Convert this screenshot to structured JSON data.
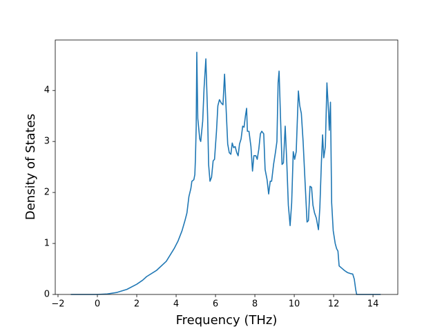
{
  "chart_data": {
    "type": "line",
    "xlabel": "Frequency (THz)",
    "ylabel": "Density of States",
    "x": [
      -1.35,
      -0.5,
      0,
      0.5,
      1,
      1.5,
      2,
      2.3,
      2.5,
      3,
      3.5,
      3.9,
      4.1,
      4.3,
      4.45,
      4.55,
      4.65,
      4.75,
      4.8,
      4.9,
      4.95,
      4.98,
      5.02,
      5.05,
      5.1,
      5.2,
      5.25,
      5.35,
      5.42,
      5.51,
      5.6,
      5.65,
      5.72,
      5.8,
      5.88,
      5.95,
      6.05,
      6.12,
      6.2,
      6.3,
      6.38,
      6.46,
      6.55,
      6.62,
      6.7,
      6.78,
      6.85,
      6.92,
      7.0,
      7.08,
      7.15,
      7.22,
      7.3,
      7.38,
      7.45,
      7.52,
      7.58,
      7.62,
      7.7,
      7.8,
      7.88,
      7.95,
      8.05,
      8.12,
      8.2,
      8.28,
      8.35,
      8.45,
      8.52,
      8.62,
      8.7,
      8.78,
      8.85,
      8.95,
      9.05,
      9.12,
      9.18,
      9.23,
      9.3,
      9.38,
      9.45,
      9.54,
      9.62,
      9.7,
      9.79,
      9.87,
      9.95,
      10.02,
      10.1,
      10.21,
      10.28,
      10.36,
      10.45,
      10.55,
      10.65,
      10.72,
      10.8,
      10.88,
      10.95,
      11.03,
      11.12,
      11.23,
      11.3,
      11.38,
      11.44,
      11.5,
      11.58,
      11.66,
      11.74,
      11.78,
      11.84,
      11.9,
      11.98,
      12.08,
      12.15,
      12.22,
      12.28,
      12.4,
      12.55,
      12.7,
      12.85,
      12.97,
      13.05,
      13.12,
      13.17,
      13.5,
      14.0,
      14.39
    ],
    "values": [
      0,
      0,
      0,
      0.01,
      0.04,
      0.1,
      0.2,
      0.28,
      0.35,
      0.47,
      0.65,
      0.9,
      1.05,
      1.25,
      1.45,
      1.6,
      1.92,
      2.08,
      2.22,
      2.25,
      2.35,
      2.65,
      3.3,
      4.75,
      3.45,
      3.05,
      3.0,
      3.4,
      4.05,
      4.62,
      3.5,
      2.55,
      2.22,
      2.3,
      2.62,
      2.65,
      3.2,
      3.7,
      3.82,
      3.75,
      3.72,
      4.32,
      3.55,
      2.95,
      2.78,
      2.75,
      2.97,
      2.88,
      2.9,
      2.78,
      2.72,
      2.95,
      3.05,
      3.3,
      3.28,
      3.5,
      3.65,
      3.2,
      3.2,
      2.9,
      2.42,
      2.72,
      2.72,
      2.65,
      2.85,
      3.15,
      3.2,
      3.15,
      2.45,
      2.25,
      1.97,
      2.22,
      2.22,
      2.55,
      2.8,
      3.0,
      4.15,
      4.38,
      3.5,
      2.55,
      2.58,
      3.3,
      2.6,
      1.75,
      1.35,
      1.8,
      2.8,
      2.65,
      2.8,
      3.99,
      3.7,
      3.55,
      3.0,
      2.2,
      1.42,
      1.45,
      2.12,
      2.1,
      1.75,
      1.6,
      1.5,
      1.27,
      1.7,
      2.6,
      3.13,
      2.68,
      2.9,
      4.15,
      3.6,
      3.22,
      3.77,
      1.8,
      1.25,
      1.0,
      0.9,
      0.85,
      0.56,
      0.52,
      0.47,
      0.43,
      0.41,
      0.4,
      0.3,
      0.1,
      0,
      0,
      0,
      0
    ],
    "color": "#1f77b4",
    "xlim": [
      -2.14,
      15.26
    ],
    "xticks": [
      {
        "value": -2,
        "label": "−2"
      },
      0,
      2,
      4,
      6,
      8,
      10,
      12,
      14
    ],
    "ylim": [
      0,
      4.99
    ],
    "yticks": [
      0,
      1,
      2,
      3,
      4
    ],
    "grid": false
  }
}
